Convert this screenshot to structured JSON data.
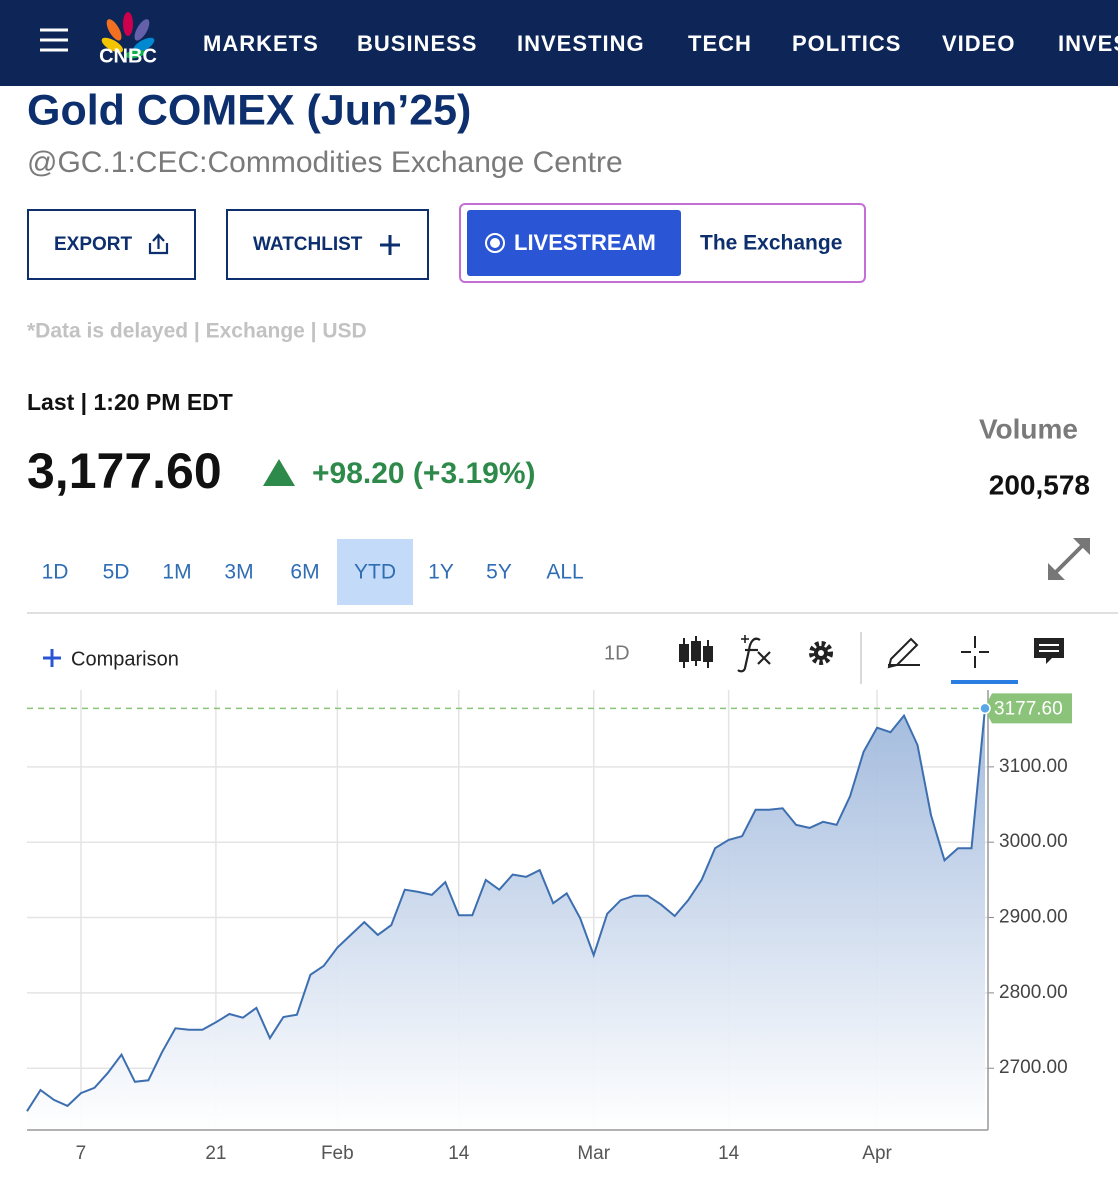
{
  "nav": {
    "logo": "CNBC",
    "items": [
      "MARKETS",
      "BUSINESS",
      "INVESTING",
      "TECH",
      "POLITICS",
      "VIDEO",
      "INVES"
    ]
  },
  "header": {
    "title": "Gold COMEX (Jun’25)",
    "subtitle": "@GC.1:CEC:Commodities Exchange Centre"
  },
  "buttons": {
    "export": "EXPORT",
    "watchlist": "WATCHLIST",
    "livestream": "LIVESTREAM",
    "exchange": "The Exchange"
  },
  "note": "*Data is delayed | Exchange | USD",
  "quote": {
    "last_label": "Last | 1:20 PM EDT",
    "price": "3,177.60",
    "change": "+98.20 (+3.19%)",
    "volume_label": "Volume",
    "volume": "200,578"
  },
  "range_tabs": [
    "1D",
    "5D",
    "1M",
    "3M",
    "6M",
    "YTD",
    "1Y",
    "5Y",
    "ALL"
  ],
  "active_tab": "YTD",
  "toolbar": {
    "comparison": "Comparison",
    "interval": "1D"
  },
  "chart_data": {
    "type": "area",
    "color": "#3d6fb0",
    "last_price_label": "3177.60",
    "categories": [
      null,
      null,
      null,
      null,
      "7",
      null,
      null,
      null,
      null,
      null,
      null,
      null,
      null,
      null,
      "21",
      null,
      null,
      null,
      null,
      null,
      null,
      null,
      null,
      "Feb",
      null,
      null,
      null,
      null,
      null,
      null,
      null,
      null,
      "14",
      null,
      null,
      null,
      null,
      null,
      null,
      null,
      null,
      null,
      "Mar",
      null,
      null,
      null,
      null,
      null,
      null,
      null,
      null,
      null,
      "14",
      null,
      null,
      null,
      null,
      null,
      null,
      null,
      null,
      null,
      null,
      "Apr",
      null,
      null,
      null,
      null,
      null,
      null,
      null,
      null
    ],
    "values": [
      2643,
      2671,
      2658,
      2650,
      2667,
      2674,
      2694,
      2718,
      2682,
      2684,
      2721,
      2753,
      2751,
      2751,
      2761,
      2772,
      2767,
      2780,
      2740,
      2768,
      2771,
      2824,
      2836,
      2860,
      2877,
      2894,
      2877,
      2890,
      2937,
      2934,
      2930,
      2947,
      2903,
      2903,
      2950,
      2937,
      2957,
      2954,
      2963,
      2919,
      2932,
      2899,
      2850,
      2905,
      2923,
      2929,
      2929,
      2917,
      2902,
      2923,
      2950,
      2992,
      3003,
      3008,
      3043,
      3043,
      3045,
      3023,
      3019,
      3027,
      3023,
      3061,
      3120,
      3152,
      3146,
      3168,
      3129,
      3036,
      2976,
      2992,
      2992,
      3177.6
    ],
    "ylim": [
      2618,
      3202
    ],
    "yticks": [
      {
        "value": 2700,
        "label": "2700.00"
      },
      {
        "value": 2800,
        "label": "2800.00"
      },
      {
        "value": 2900,
        "label": "2900.00"
      },
      {
        "value": 3000,
        "label": "3000.00"
      },
      {
        "value": 3100,
        "label": "3100.00"
      }
    ],
    "grid": true
  }
}
